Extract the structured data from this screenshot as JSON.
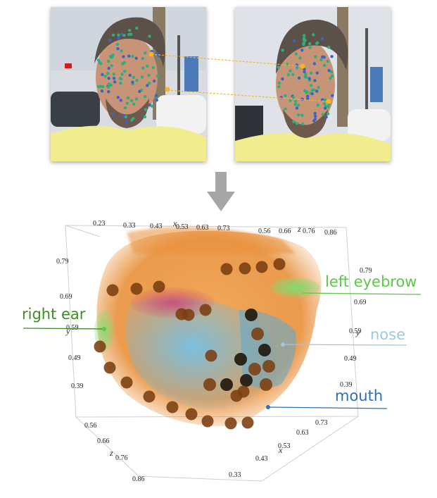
{
  "photos": {
    "left": {
      "name": "source-frame-photo"
    },
    "right": {
      "name": "target-frame-photo"
    }
  },
  "arrow": {
    "icon": "down-arrow-icon",
    "color": "#a6a6a6"
  },
  "landmark_colors": {
    "green": "#2fae7d",
    "blue": "#3f63c4",
    "yellow": "#f6b718",
    "link": "#f2b632"
  },
  "cloud_colors": {
    "orange": "#e8903a",
    "blue": "#6db8e0",
    "pink": "#c8487a",
    "green": "#7edc70",
    "marker": "#7a3e10"
  },
  "axis_ticks": {
    "x_top": [
      "0.23",
      "0.33",
      "0.43",
      "0.53",
      "0.63",
      "0.73"
    ],
    "z_top": [
      "0.56",
      "0.66",
      "0.76",
      "0.86"
    ],
    "y_left": [
      "0.79",
      "0.69",
      "0.59",
      "0.49",
      "0.39"
    ],
    "y_right": [
      "0.79",
      "0.69",
      "0.59",
      "0.49",
      "0.39"
    ],
    "z_bottom": [
      "0.56",
      "0.66",
      "0.76",
      "0.86"
    ],
    "x_bottom": [
      "0.73",
      "0.63",
      "0.53",
      "0.43",
      "0.33"
    ]
  },
  "axis_names": {
    "x": "x",
    "y": "y",
    "z": "z"
  },
  "annotations": {
    "left_eyebrow": {
      "text": "left eyebrow",
      "color": "#5cc84a"
    },
    "right_ear": {
      "text": "right ear",
      "color": "#3f8a2a"
    },
    "nose": {
      "text": "nose",
      "color": "#9cc8e2"
    },
    "mouth": {
      "text": "mouth",
      "color": "#2f6fb2"
    }
  }
}
